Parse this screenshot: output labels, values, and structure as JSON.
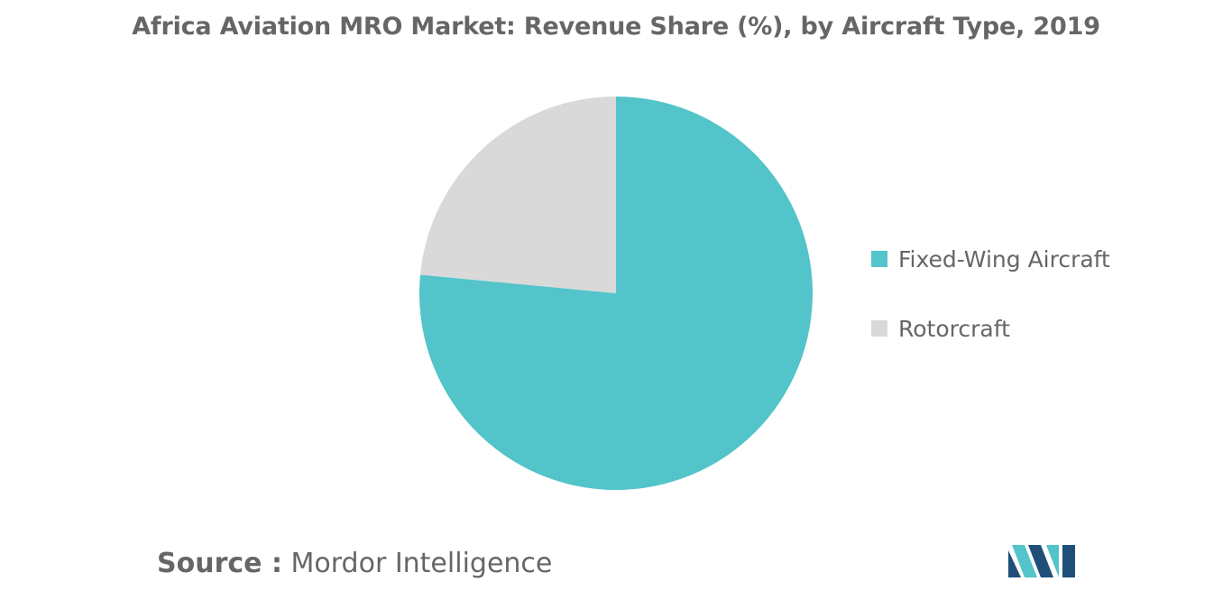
{
  "title": "Africa Aviation MRO Market: Revenue Share (%), by Aircraft Type, 2019",
  "chart_data": {
    "type": "pie",
    "title": "Africa Aviation MRO Market: Revenue Share (%), by Aircraft Type, 2019",
    "categories": [
      "Fixed-Wing Aircraft",
      "Rotorcraft"
    ],
    "values": [
      76.5,
      23.5
    ],
    "colors": [
      "#52C4CA",
      "#D9D9D9"
    ],
    "legend_position": "right"
  },
  "legend": {
    "items": [
      {
        "label": "Fixed-Wing Aircraft",
        "color": "#52C4CA"
      },
      {
        "label": "Rotorcraft",
        "color": "#D9D9D9"
      }
    ]
  },
  "source": {
    "key": "Source",
    "separator": " :",
    "value": "Mordor Intelligence"
  },
  "logo": {
    "icon": "mordor-intelligence-logo",
    "colors": [
      "#1F4E79",
      "#52C4CA"
    ]
  }
}
